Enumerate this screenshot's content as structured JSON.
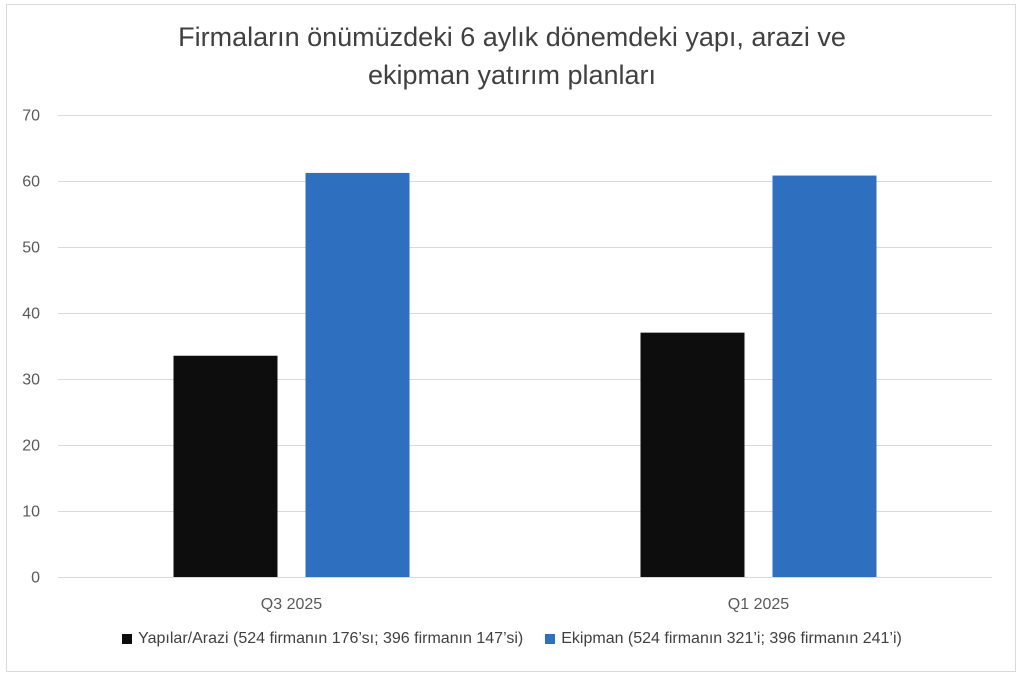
{
  "chart_data": {
    "type": "bar",
    "title_lines": [
      "Firmaların önümüzdeki 6 aylık dönemdeki yapı, arazi ve",
      "ekipman yatırım planları"
    ],
    "categories": [
      "Q3 2025",
      "Q1 2025"
    ],
    "series": [
      {
        "name": "Yapılar/Arazi (524 firmanın 176’sı; 396 firmanın 147’si)",
        "values": [
          33.6,
          37.1
        ],
        "color": "#0d0d0d"
      },
      {
        "name": "Ekipman (524 firmanın 321’i; 396 firmanın 241’i)",
        "values": [
          61.3,
          60.9
        ],
        "color": "#2e6fc0"
      }
    ],
    "ylim": [
      0,
      70
    ],
    "yticks": [
      "0",
      "10",
      "20",
      "30",
      "40",
      "50",
      "60",
      "70"
    ],
    "grid": true,
    "legend_position": "bottom"
  }
}
